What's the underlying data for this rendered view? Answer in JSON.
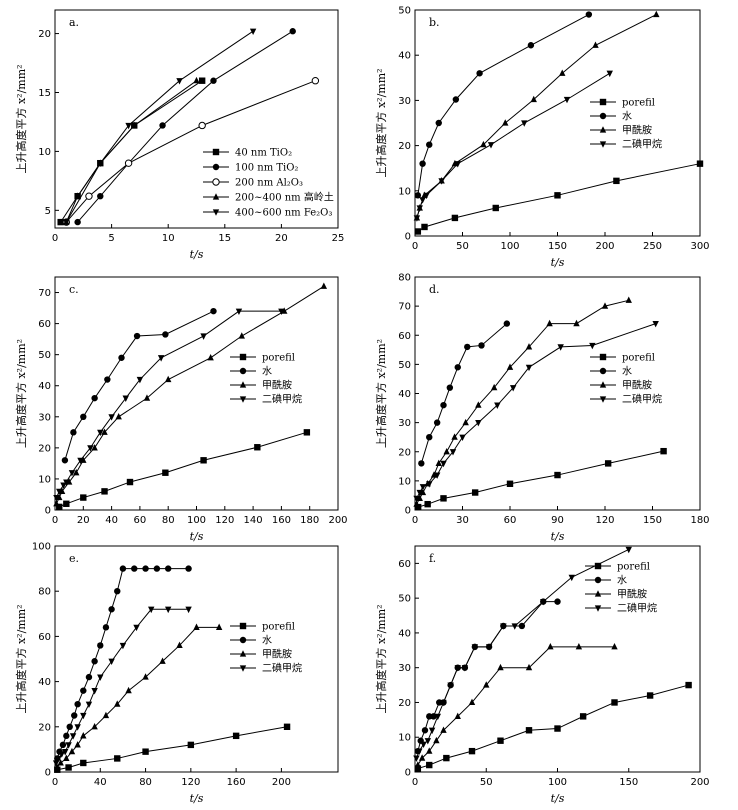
{
  "chart_data": [
    {
      "id": "a",
      "panel_label": "a.",
      "type": "line",
      "xlabel": "t/s",
      "ylabel": "上升高度平方 x²/mm²",
      "xlim": [
        0,
        25
      ],
      "ylim": [
        3.5,
        22
      ],
      "xticks": [
        "0",
        "5",
        "10",
        "15",
        "20",
        "25"
      ],
      "yticks": [
        "5",
        "10",
        "15",
        "20"
      ],
      "legend_position": "bottom-right",
      "series": [
        {
          "name": "40 nm TiO₂",
          "marker": "square",
          "x": [
            0.5,
            2,
            4,
            7,
            13
          ],
          "y": [
            4,
            6.2,
            9,
            12.2,
            16
          ]
        },
        {
          "name": "100 nm TiO₂",
          "marker": "circle",
          "x": [
            2,
            4,
            6.5,
            9.5,
            14,
            21
          ],
          "y": [
            4,
            6.2,
            9,
            12.2,
            16,
            20.2
          ]
        },
        {
          "name": "200 nm Al₂O₃",
          "marker": "open-circle",
          "x": [
            1,
            3,
            6.5,
            13,
            23
          ],
          "y": [
            4,
            6.2,
            9,
            12.2,
            16
          ]
        },
        {
          "name": "200~400 nm 高岭土",
          "marker": "triangle-up",
          "x": [
            1,
            2,
            4,
            7,
            12.5
          ],
          "y": [
            4,
            6.2,
            9,
            12.2,
            16
          ]
        },
        {
          "name": "400~600 nm Fe₂O₃",
          "marker": "triangle-down",
          "x": [
            1,
            4,
            6.5,
            11,
            17.5
          ],
          "y": [
            4,
            9,
            12.2,
            16,
            20.2
          ]
        }
      ]
    },
    {
      "id": "b",
      "panel_label": "b.",
      "type": "line",
      "xlabel": "t/s",
      "ylabel": "上升高度平方 x²/mm²",
      "xlim": [
        0,
        300
      ],
      "ylim": [
        0,
        50
      ],
      "xticks": [
        "0",
        "50",
        "100",
        "150",
        "200",
        "250",
        "300"
      ],
      "yticks": [
        "0",
        "10",
        "20",
        "30",
        "40",
        "50"
      ],
      "legend_position": "center-right",
      "series": [
        {
          "name": "porefil",
          "marker": "square",
          "x": [
            3,
            10,
            42,
            85,
            150,
            212,
            300
          ],
          "y": [
            1,
            2,
            4,
            6.2,
            9,
            12.2,
            16
          ]
        },
        {
          "name": "水",
          "marker": "circle",
          "x": [
            3,
            8,
            15,
            25,
            43,
            68,
            122,
            183
          ],
          "y": [
            9,
            16,
            20.2,
            25,
            30.2,
            36,
            42.2,
            49
          ]
        },
        {
          "name": "甲酰胺",
          "marker": "triangle-up",
          "x": [
            2,
            5,
            10,
            28,
            42,
            72,
            95,
            125,
            155,
            190,
            254
          ],
          "y": [
            4,
            6.2,
            9,
            12.2,
            16,
            20.2,
            25,
            30.2,
            36,
            42.2,
            49
          ]
        },
        {
          "name": "二碘甲烷",
          "marker": "triangle-down",
          "x": [
            2,
            5,
            8,
            12,
            28,
            45,
            80,
            115,
            160,
            205
          ],
          "y": [
            4,
            6.2,
            8,
            9,
            12.2,
            16,
            20.2,
            25,
            30.2,
            36
          ]
        }
      ]
    },
    {
      "id": "c",
      "panel_label": "c.",
      "type": "line",
      "xlabel": "t/s",
      "ylabel": "上升高度平方 x²/mm²",
      "xlim": [
        0,
        200
      ],
      "ylim": [
        0,
        75
      ],
      "xticks": [
        "0",
        "20",
        "40",
        "60",
        "80",
        "100",
        "120",
        "140",
        "160",
        "180",
        "200"
      ],
      "yticks": [
        "0",
        "10",
        "20",
        "30",
        "40",
        "50",
        "60",
        "70"
      ],
      "legend_position": "center-right",
      "series": [
        {
          "name": "porefil",
          "marker": "square",
          "x": [
            3,
            8,
            20,
            35,
            53,
            78,
            105,
            143,
            178
          ],
          "y": [
            1,
            2,
            4,
            6,
            9,
            12,
            16,
            20.2,
            25
          ]
        },
        {
          "name": "水",
          "marker": "circle",
          "x": [
            7,
            13,
            20,
            28,
            37,
            47,
            58,
            78,
            112
          ],
          "y": [
            16,
            25,
            30,
            36,
            42,
            49,
            56,
            56.5,
            64
          ]
        },
        {
          "name": "甲酰胺",
          "marker": "triangle-up",
          "x": [
            1,
            3,
            5,
            10,
            15,
            20,
            28,
            35,
            45,
            65,
            80,
            110,
            132,
            162,
            190
          ],
          "y": [
            2,
            4,
            6,
            9,
            12,
            16,
            20,
            25,
            30,
            36,
            42,
            49,
            56,
            64,
            72
          ]
        },
        {
          "name": "二碘甲烷",
          "marker": "triangle-down",
          "x": [
            1,
            3,
            6,
            8,
            12,
            18,
            25,
            32,
            40,
            50,
            60,
            75,
            105,
            130,
            160
          ],
          "y": [
            4,
            6,
            8,
            9,
            12,
            16,
            20,
            25,
            30,
            36,
            42,
            49,
            56,
            64,
            64
          ]
        }
      ]
    },
    {
      "id": "d",
      "panel_label": "d.",
      "type": "line",
      "xlabel": "t/s",
      "ylabel": "上升高度平方 x²/mm²",
      "xlim": [
        0,
        180
      ],
      "ylim": [
        0,
        80
      ],
      "xticks": [
        "0",
        "30",
        "60",
        "90",
        "120",
        "150",
        "180"
      ],
      "yticks": [
        "0",
        "10",
        "20",
        "30",
        "40",
        "50",
        "60",
        "70",
        "80"
      ],
      "legend_position": "center-right",
      "series": [
        {
          "name": "porefil",
          "marker": "square",
          "x": [
            2,
            8,
            18,
            38,
            60,
            90,
            122,
            157
          ],
          "y": [
            1,
            2,
            4,
            6,
            9,
            12,
            16,
            20.2
          ]
        },
        {
          "name": "水",
          "marker": "circle",
          "x": [
            4,
            9,
            14,
            18,
            22,
            27,
            33,
            42,
            58
          ],
          "y": [
            16,
            25,
            30,
            36,
            42,
            49,
            56,
            56.5,
            64
          ]
        },
        {
          "name": "甲酰胺",
          "marker": "triangle-up",
          "x": [
            1,
            3,
            5,
            8,
            12,
            15,
            20,
            25,
            32,
            40,
            50,
            60,
            72,
            85,
            102,
            120,
            135
          ],
          "y": [
            2,
            4,
            6,
            9,
            12,
            16,
            20,
            25,
            30,
            36,
            42,
            49,
            56,
            64,
            64,
            70,
            72
          ]
        },
        {
          "name": "二碘甲烷",
          "marker": "triangle-down",
          "x": [
            1,
            3,
            5,
            9,
            14,
            18,
            24,
            30,
            40,
            52,
            62,
            72,
            92,
            112,
            152
          ],
          "y": [
            4,
            6,
            8,
            9,
            12,
            16,
            20,
            25,
            30,
            36,
            42,
            49,
            56,
            56.5,
            64
          ]
        }
      ]
    },
    {
      "id": "e",
      "panel_label": "e.",
      "type": "line",
      "xlabel": "t/s",
      "ylabel": "上升高度平方 x²/mm²",
      "xlim": [
        0,
        250
      ],
      "ylim": [
        0,
        100
      ],
      "xticks": [
        "0",
        "40",
        "80",
        "120",
        "160",
        "200"
      ],
      "yticks": [
        "0",
        "20",
        "40",
        "60",
        "80",
        "100"
      ],
      "legend_position": "center-right",
      "series": [
        {
          "name": "porefil",
          "marker": "square",
          "x": [
            2,
            12,
            25,
            55,
            80,
            120,
            160,
            205
          ],
          "y": [
            1,
            2,
            4,
            6,
            9,
            12,
            16,
            20
          ]
        },
        {
          "name": "水",
          "marker": "circle",
          "x": [
            2,
            4,
            7,
            10,
            13,
            17,
            20,
            25,
            30,
            35,
            40,
            45,
            50,
            55,
            60,
            70,
            80,
            90,
            100,
            118
          ],
          "y": [
            6,
            9,
            12,
            16,
            20,
            25,
            30,
            36,
            42,
            49,
            56,
            64,
            72,
            80,
            90,
            90,
            90,
            90,
            90,
            90
          ]
        },
        {
          "name": "甲酰胺",
          "marker": "triangle-up",
          "x": [
            2,
            5,
            10,
            15,
            20,
            25,
            35,
            45,
            55,
            65,
            80,
            95,
            110,
            125,
            145
          ],
          "y": [
            2,
            4,
            6,
            9,
            12,
            16,
            20,
            25,
            30,
            36,
            42,
            49,
            56,
            64,
            64
          ]
        },
        {
          "name": "二碘甲烷",
          "marker": "triangle-down",
          "x": [
            1,
            3,
            6,
            9,
            12,
            16,
            20,
            25,
            30,
            35,
            40,
            50,
            60,
            72,
            85,
            100,
            118
          ],
          "y": [
            4,
            6,
            8,
            9,
            12,
            16,
            20,
            25,
            30,
            36,
            42,
            49,
            56,
            64,
            72,
            72,
            72
          ]
        }
      ]
    },
    {
      "id": "f",
      "panel_label": "f.",
      "type": "line",
      "xlabel": "t/s",
      "ylabel": "上升高度平方 x²/mm²",
      "xlim": [
        0,
        200
      ],
      "ylim": [
        0,
        65
      ],
      "xticks": [
        "0",
        "50",
        "100",
        "150",
        "200"
      ],
      "yticks": [
        "0",
        "10",
        "20",
        "30",
        "40",
        "50",
        "60"
      ],
      "legend_position": "top-right",
      "series": [
        {
          "name": "porefil",
          "marker": "square",
          "x": [
            2,
            10,
            22,
            40,
            60,
            80,
            100,
            118,
            140,
            165,
            192
          ],
          "y": [
            1,
            2,
            4,
            6,
            9,
            12,
            12.5,
            16,
            20,
            22,
            25
          ]
        },
        {
          "name": "水",
          "marker": "circle",
          "x": [
            2,
            4,
            7,
            10,
            13,
            17,
            20,
            25,
            30,
            35,
            42,
            52,
            62,
            75,
            90,
            100
          ],
          "y": [
            6,
            9,
            12,
            16,
            16,
            20,
            20,
            25,
            30,
            30,
            36,
            36,
            42,
            42,
            49,
            49
          ]
        },
        {
          "name": "甲酰胺",
          "marker": "triangle-up",
          "x": [
            2,
            5,
            10,
            15,
            20,
            30,
            40,
            50,
            60,
            80,
            95,
            115,
            140
          ],
          "y": [
            2,
            4,
            6,
            9,
            12,
            16,
            20,
            25,
            30,
            30,
            36,
            36,
            36
          ]
        },
        {
          "name": "二碘甲烷",
          "marker": "triangle-down",
          "x": [
            1,
            3,
            6,
            9,
            12,
            16,
            20,
            25,
            30,
            35,
            42,
            52,
            62,
            70,
            90,
            110,
            150
          ],
          "y": [
            4,
            6,
            8,
            9,
            12,
            16,
            20,
            25,
            30,
            30,
            36,
            36,
            42,
            42,
            49,
            56,
            64
          ]
        }
      ]
    }
  ]
}
